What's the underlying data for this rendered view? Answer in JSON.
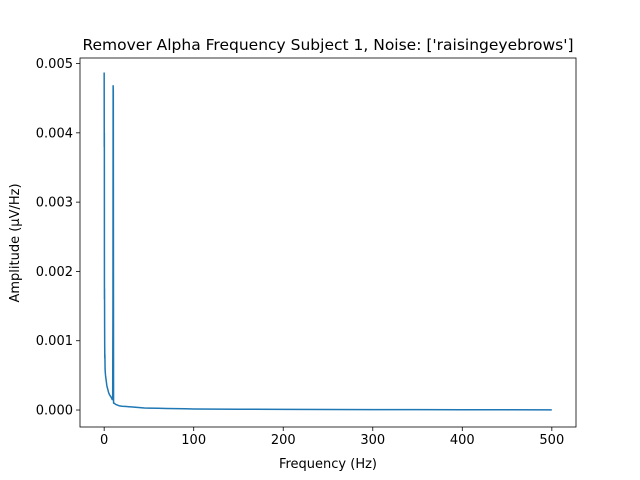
{
  "chart_data": {
    "type": "line",
    "title": "Remover Alpha Frequency Subject 1, Noise: ['raisingeyebrows']",
    "xlabel": "Frequency (Hz)",
    "ylabel": "Amplitude (μV/Hz)",
    "xlim": [
      -27,
      527
    ],
    "ylim": [
      -0.000245,
      0.00508
    ],
    "xticks": [
      0,
      100,
      200,
      300,
      400,
      500
    ],
    "xtick_labels": [
      "0",
      "100",
      "200",
      "300",
      "400",
      "500"
    ],
    "yticks": [
      0,
      0.001,
      0.002,
      0.003,
      0.004,
      0.005
    ],
    "ytick_labels": [
      "0.000",
      "0.001",
      "0.002",
      "0.003",
      "0.004",
      "0.005"
    ],
    "grid": false,
    "line_color": "#1f77b4",
    "series": [
      {
        "x": [
          0,
          0.1,
          0.2,
          0.3,
          0.4,
          0.5,
          0.6,
          0.7,
          0.8,
          1,
          1.2,
          1.5,
          2,
          2.5,
          3,
          4,
          5,
          6,
          7,
          8,
          9,
          9.5,
          9.8,
          10,
          10.2,
          10.5,
          11,
          12,
          13,
          15,
          17,
          20,
          25,
          30,
          35,
          40,
          45,
          50,
          60,
          70,
          80,
          90,
          100,
          150,
          200,
          250,
          300,
          350,
          400,
          450,
          500
        ],
        "y": [
          0.00487,
          0.0038,
          0.004,
          0.0016,
          0.00175,
          0.0012,
          0.0009,
          0.00075,
          0.0008,
          0.0006,
          0.00055,
          0.0005,
          0.00045,
          0.0004,
          0.00035,
          0.0003,
          0.00025,
          0.00022,
          0.0002,
          0.00018,
          0.00015,
          0.0002,
          0.0015,
          0.00468,
          0.0046,
          0.0001,
          0.0001,
          9e-05,
          8e-05,
          7e-05,
          6e-05,
          5.5e-05,
          5e-05,
          4.5e-05,
          4e-05,
          3.5e-05,
          3e-05,
          2.8e-05,
          2.5e-05,
          2.2e-05,
          2e-05,
          1.8e-05,
          1.5e-05,
          1.2e-05,
          1e-05,
          8e-06,
          6e-06,
          5e-06,
          4e-06,
          3e-06,
          2e-06
        ]
      }
    ]
  }
}
